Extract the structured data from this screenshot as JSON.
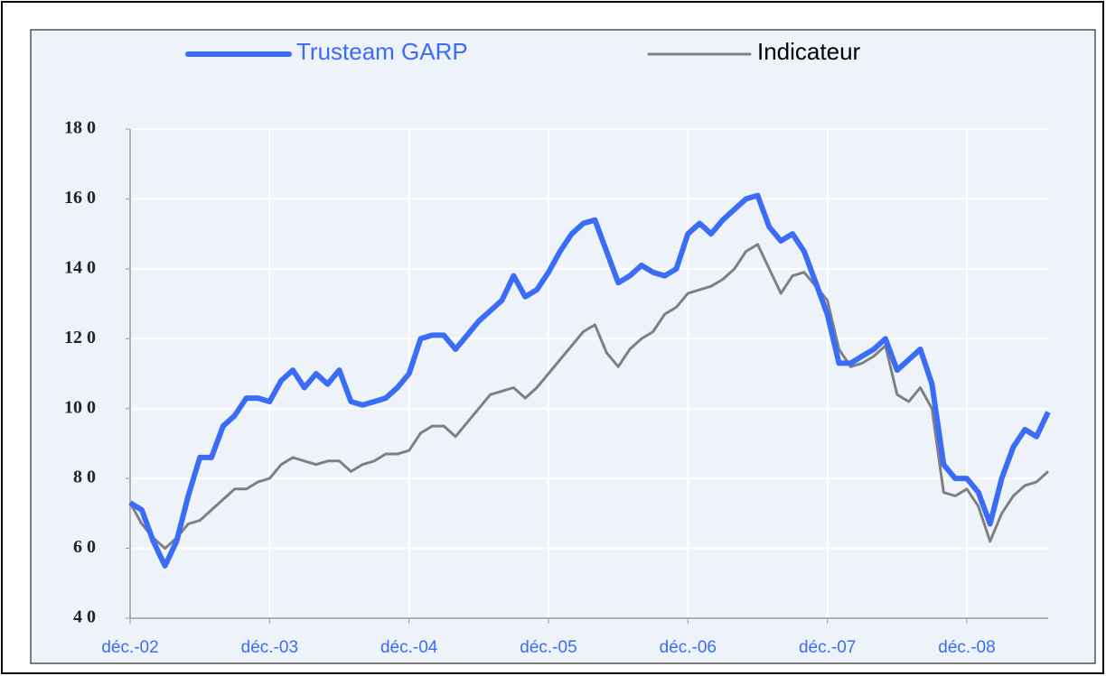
{
  "chart_data": {
    "type": "line",
    "x": [
      "2002-12",
      "2003-01",
      "2003-02",
      "2003-03",
      "2003-04",
      "2003-05",
      "2003-06",
      "2003-07",
      "2003-08",
      "2003-09",
      "2003-10",
      "2003-11",
      "2003-12",
      "2004-01",
      "2004-02",
      "2004-03",
      "2004-04",
      "2004-05",
      "2004-06",
      "2004-07",
      "2004-08",
      "2004-09",
      "2004-10",
      "2004-11",
      "2004-12",
      "2005-01",
      "2005-02",
      "2005-03",
      "2005-04",
      "2005-05",
      "2005-06",
      "2005-07",
      "2005-08",
      "2005-09",
      "2005-10",
      "2005-11",
      "2005-12",
      "2006-01",
      "2006-02",
      "2006-03",
      "2006-04",
      "2006-05",
      "2006-06",
      "2006-07",
      "2006-08",
      "2006-09",
      "2006-10",
      "2006-11",
      "2006-12",
      "2007-01",
      "2007-02",
      "2007-03",
      "2007-04",
      "2007-05",
      "2007-06",
      "2007-07",
      "2007-08",
      "2007-09",
      "2007-10",
      "2007-11",
      "2007-12",
      "2008-01",
      "2008-02",
      "2008-03",
      "2008-04",
      "2008-05",
      "2008-06",
      "2008-07",
      "2008-08",
      "2008-09",
      "2008-10",
      "2008-11",
      "2008-12",
      "2009-01",
      "2009-02",
      "2009-03",
      "2009-04",
      "2009-05",
      "2009-06",
      "2009-07"
    ],
    "series": [
      {
        "name": "Trusteam GARP",
        "color": "#3b6cf5",
        "values": [
          73,
          71,
          62,
          55,
          62,
          75,
          86,
          86,
          95,
          98,
          103,
          103,
          102,
          108,
          111,
          106,
          110,
          107,
          111,
          102,
          101,
          102,
          103,
          106,
          110,
          120,
          121,
          121,
          117,
          121,
          125,
          128,
          131,
          138,
          132,
          134,
          139,
          145,
          150,
          153,
          154,
          145,
          136,
          138,
          141,
          139,
          138,
          140,
          150,
          153,
          150,
          154,
          157,
          160,
          161,
          152,
          148,
          150,
          145,
          136,
          127,
          113,
          113,
          115,
          117,
          120,
          111,
          114,
          117,
          107,
          84,
          80,
          80,
          76,
          67,
          80,
          89,
          94,
          92,
          99
        ]
      },
      {
        "name": "Indicateur",
        "color": "#808080",
        "values": [
          73,
          67,
          63,
          60,
          63,
          67,
          68,
          71,
          74,
          77,
          77,
          79,
          80,
          84,
          86,
          85,
          84,
          85,
          85,
          82,
          84,
          85,
          87,
          87,
          88,
          93,
          95,
          95,
          92,
          96,
          100,
          104,
          105,
          106,
          103,
          106,
          110,
          114,
          118,
          122,
          124,
          116,
          112,
          117,
          120,
          122,
          127,
          129,
          133,
          134,
          135,
          137,
          140,
          145,
          147,
          140,
          133,
          138,
          139,
          135,
          131,
          117,
          112,
          113,
          115,
          118,
          104,
          102,
          106,
          100,
          76,
          75,
          77,
          72,
          62,
          70,
          75,
          78,
          79,
          82
        ]
      }
    ],
    "xlim": [
      "2002-12",
      "2009-07"
    ],
    "xticks": [
      {
        "value": "2002-12",
        "label": "déc.-02"
      },
      {
        "value": "2003-12",
        "label": "déc.-03"
      },
      {
        "value": "2004-12",
        "label": "déc.-04"
      },
      {
        "value": "2005-12",
        "label": "déc.-05"
      },
      {
        "value": "2006-12",
        "label": "déc.-06"
      },
      {
        "value": "2007-12",
        "label": "déc.-07"
      },
      {
        "value": "2008-12",
        "label": "déc.-08"
      }
    ],
    "ylim": [
      40,
      180
    ],
    "yticks": [
      {
        "value": 40,
        "label": "4 0"
      },
      {
        "value": 60,
        "label": "6 0"
      },
      {
        "value": 80,
        "label": "8 0"
      },
      {
        "value": 100,
        "label": "10 0"
      },
      {
        "value": 120,
        "label": "12 0"
      },
      {
        "value": 140,
        "label": "14 0"
      },
      {
        "value": 160,
        "label": "16 0"
      },
      {
        "value": 180,
        "label": "18 0"
      }
    ],
    "grid": true,
    "legend": "top"
  }
}
